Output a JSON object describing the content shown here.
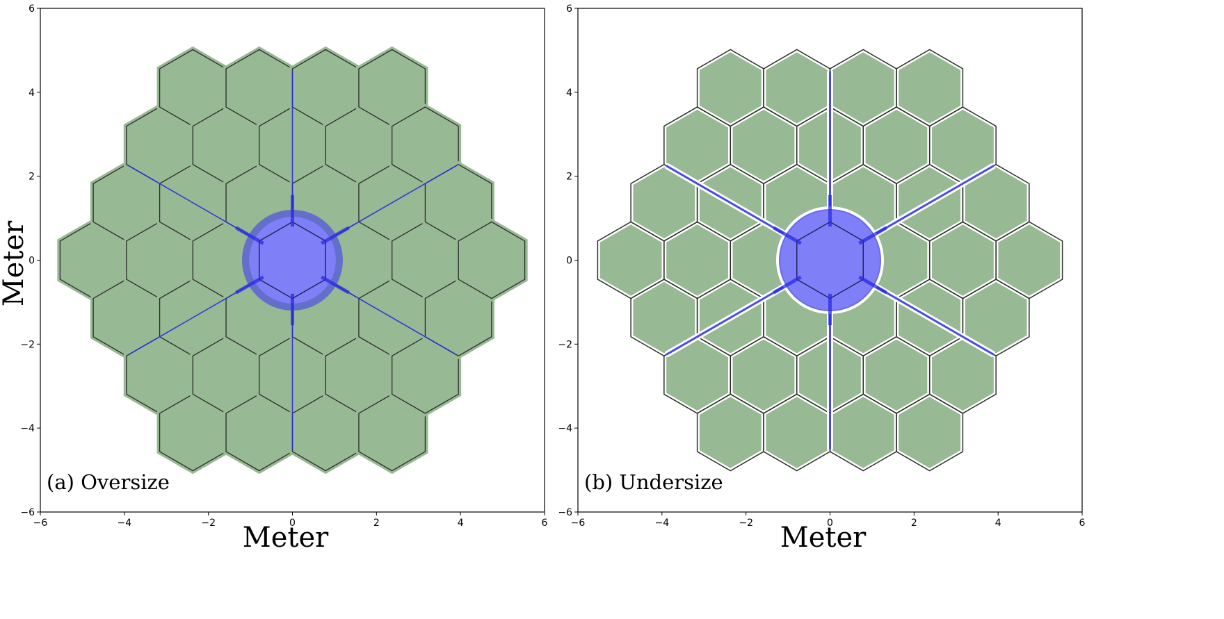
{
  "figure": {
    "panels": [
      {
        "id": "oversize",
        "label": "(a) Oversize",
        "xlabel": "Meter",
        "ylabel": "Meter",
        "mode": "oversize"
      },
      {
        "id": "undersize",
        "label": "(b) Undersize",
        "xlabel": "Meter",
        "ylabel": "",
        "mode": "undersize"
      }
    ],
    "axis": {
      "xlim": [
        -6,
        6
      ],
      "ylim": [
        -6,
        6
      ],
      "ticks": [
        -6,
        -4,
        -2,
        0,
        2,
        4,
        6
      ],
      "tick_labels": [
        "−6",
        "−4",
        "−2",
        "0",
        "2",
        "4",
        "6"
      ]
    },
    "geometry_units": {
      "segment_flat_to_flat_m": 1.58,
      "rings": 3,
      "central_obscuration_radius_m": 1.2,
      "strut_outer_radius_m": 4.5
    },
    "colors": {
      "segment_fill": "#97b993",
      "segment_edge": "#2b2b2b",
      "obscuration_fill": "#7f7ff7",
      "obscuration_dark": "#5a62d6",
      "strut": "#2a2ae6",
      "outline": "#3a3a3a"
    }
  }
}
